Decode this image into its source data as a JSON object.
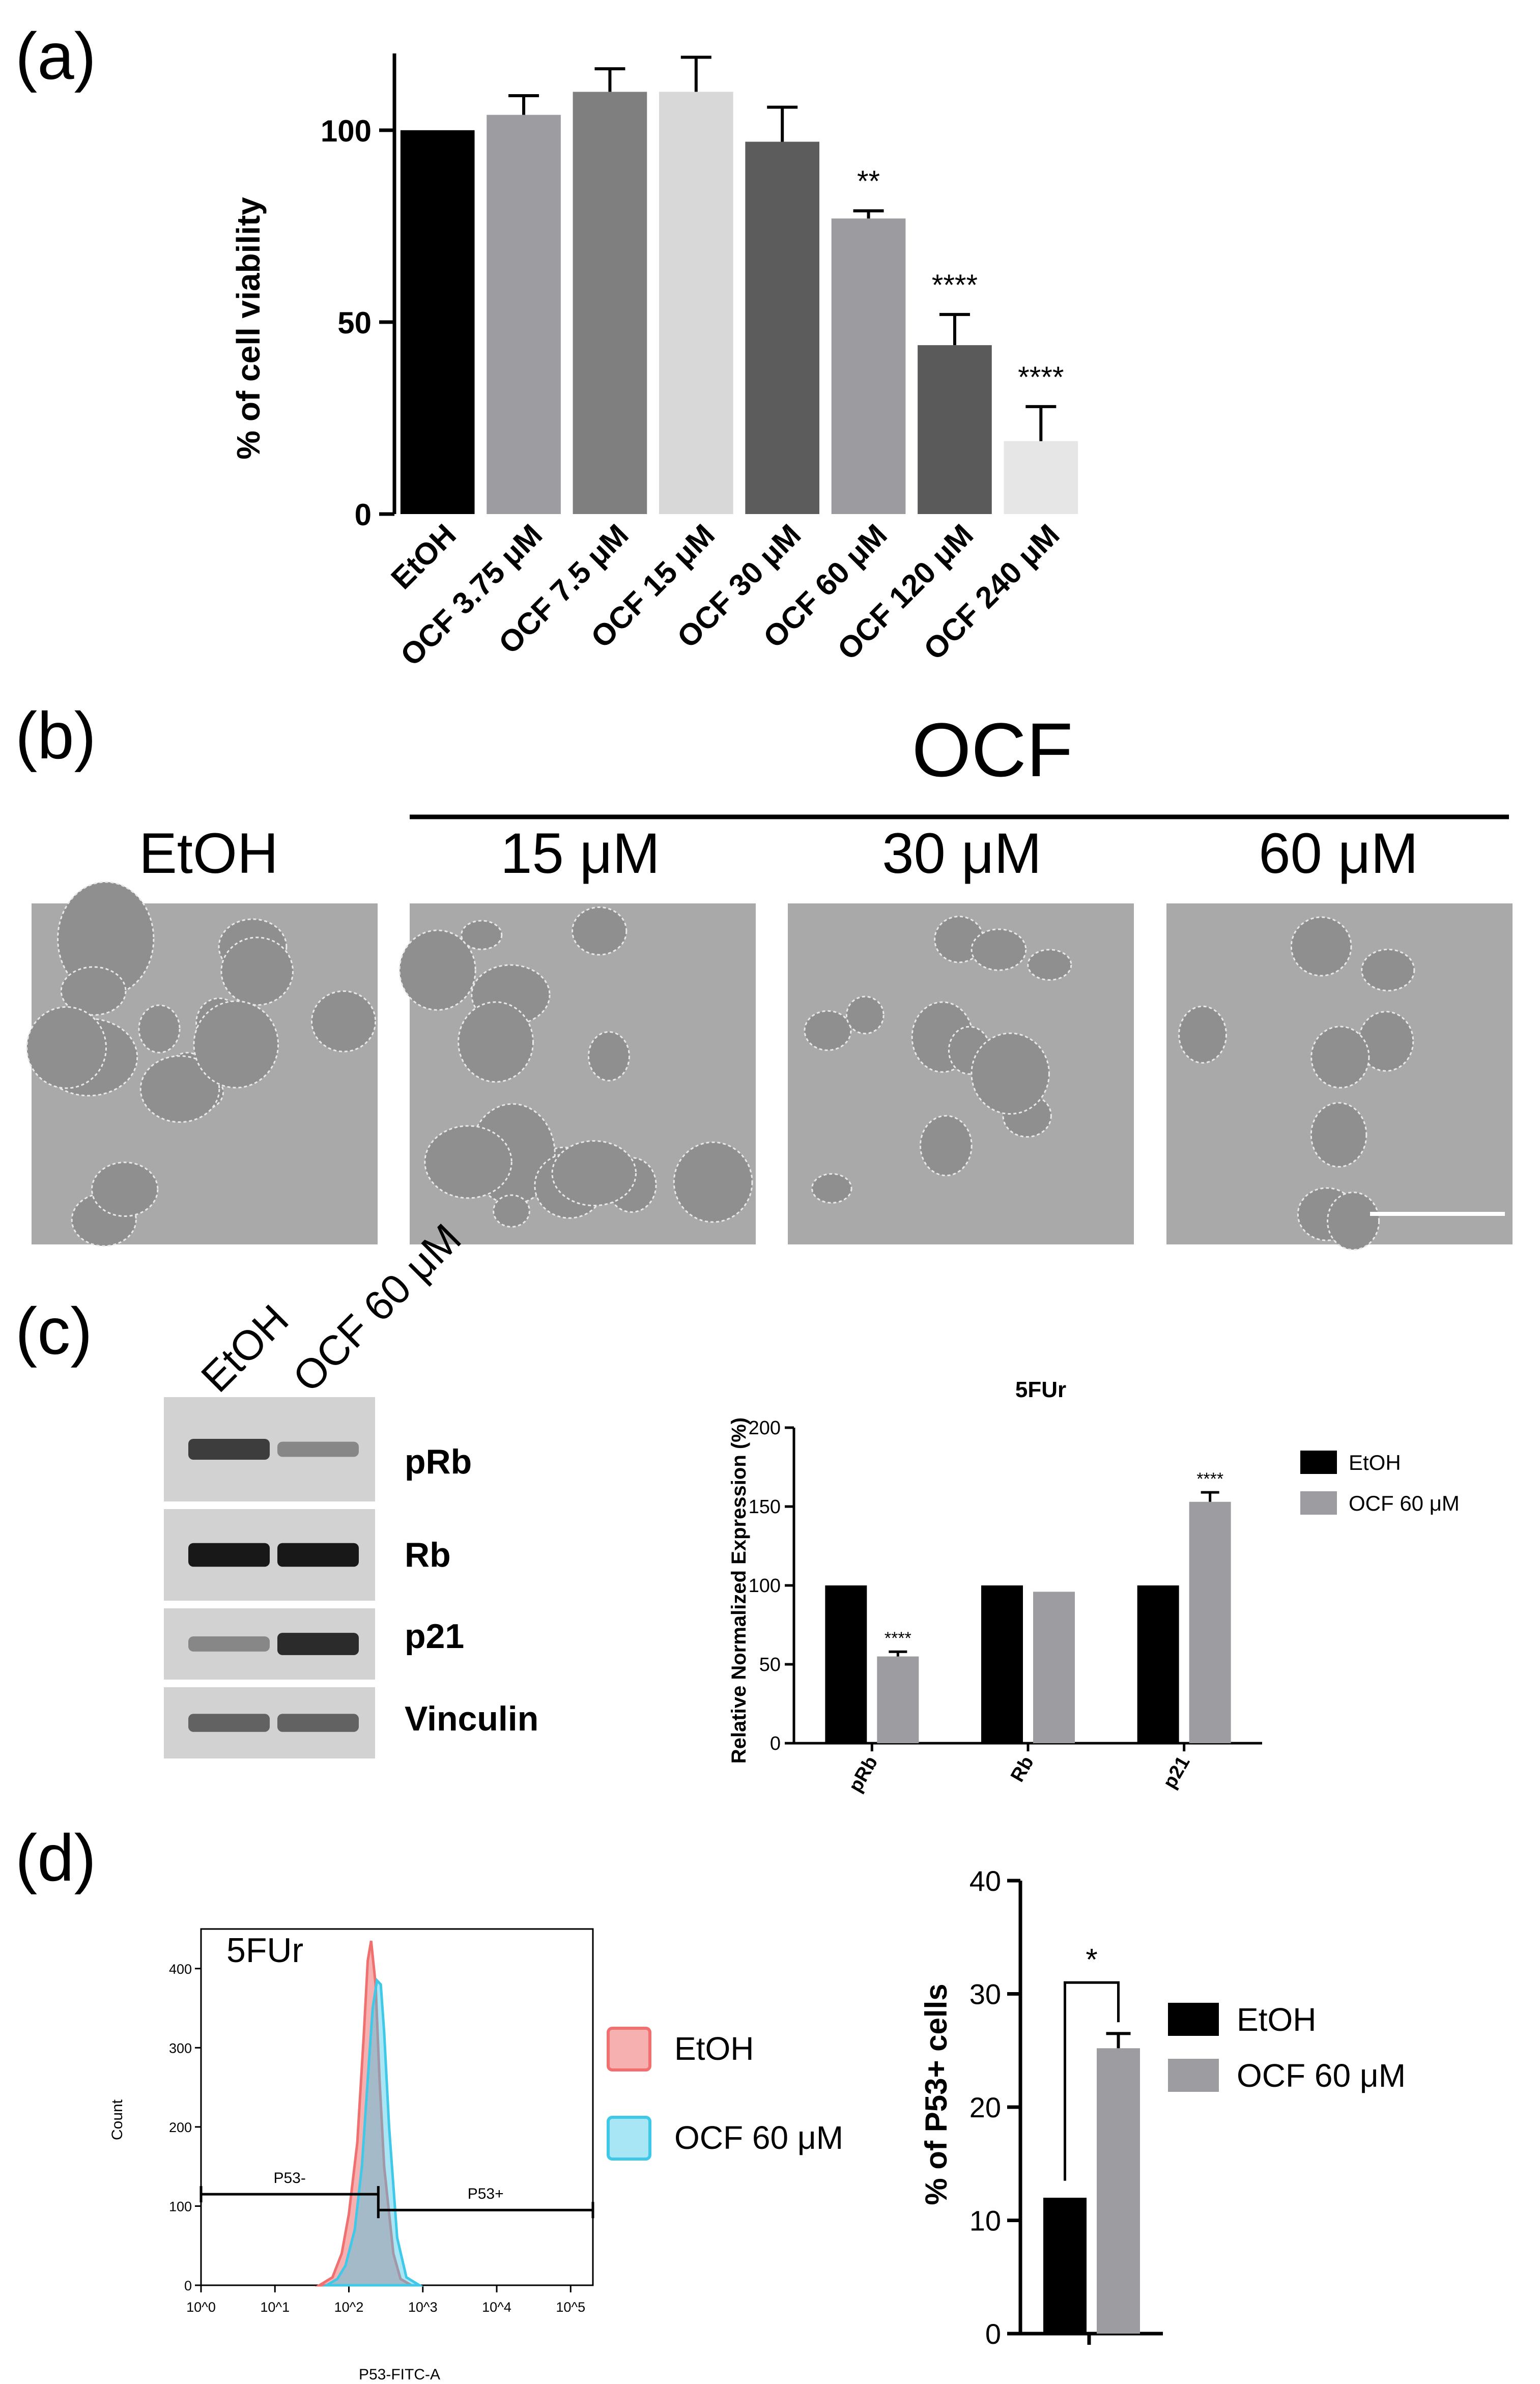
{
  "panels": {
    "a": {
      "label": "(a)"
    },
    "b": {
      "label": "(b)"
    },
    "c": {
      "label": "(c)"
    },
    "d": {
      "label": "(d)"
    }
  },
  "panel_b": {
    "group_title": "OCF",
    "columns": [
      "EtOH",
      "15 μM",
      "30 μM",
      "60 μM"
    ]
  },
  "panel_c_blot": {
    "lanes": [
      "EtOH",
      "OCF 60 μM"
    ],
    "bands": [
      "pRb",
      "Rb",
      "p21",
      "Vinculin"
    ]
  },
  "chart_data": [
    {
      "id": "a",
      "type": "bar",
      "title": "",
      "xlabel": "",
      "ylabel": "% of cell viability",
      "ylim": [
        0,
        120
      ],
      "yticks": [
        0,
        50,
        100
      ],
      "categories": [
        "EtOH",
        "OCF 3.75 μM",
        "OCF 7.5 μM",
        "OCF 15 μM",
        "OCF 30 μM",
        "OCF 60 μM",
        "OCF 120 μM",
        "OCF 240 μM"
      ],
      "values": [
        100,
        104,
        110,
        110,
        97,
        77,
        44,
        19
      ],
      "errors": [
        0,
        5,
        6,
        9,
        9,
        2,
        8,
        9
      ],
      "significance": [
        "",
        "",
        "",
        "",
        "",
        "**",
        "****",
        "****"
      ],
      "colors": [
        "#000000",
        "#9d9ca1",
        "#7f7f7f",
        "#d8d8d8",
        "#5c5c5c",
        "#9c9ca0",
        "#5a5a5a",
        "#e6e6e6"
      ]
    },
    {
      "id": "c",
      "type": "bar",
      "title": "5FUr",
      "xlabel": "",
      "ylabel": "Relative Normalized Expression (%)",
      "ylim": [
        0,
        200
      ],
      "yticks": [
        0,
        50,
        100,
        150,
        200
      ],
      "categories": [
        "pRb",
        "Rb",
        "p21"
      ],
      "series": [
        {
          "name": "EtOH",
          "values": [
            100,
            100,
            100
          ],
          "errors": [
            0,
            0,
            0
          ],
          "significance": [
            "",
            "",
            ""
          ],
          "color": "#000000"
        },
        {
          "name": "OCF 60 μM",
          "values": [
            55,
            96,
            153
          ],
          "errors": [
            3,
            0,
            6
          ],
          "significance": [
            "****",
            "",
            "****"
          ],
          "color": "#9d9ca1"
        }
      ],
      "legend": "right"
    },
    {
      "id": "d-histogram",
      "type": "area",
      "title": "5FUr",
      "xlabel": "P53-FITC-A",
      "ylabel": "Count",
      "xscale": "log",
      "xlim": [
        1,
        200000
      ],
      "xticks": [
        "10^0",
        "10^1",
        "10^2",
        "10^3",
        "10^4",
        "10^5"
      ],
      "ylim": [
        0,
        450
      ],
      "yticks": [
        0,
        100,
        200,
        300,
        400
      ],
      "series": [
        {
          "name": "EtOH",
          "x": [
            40,
            60,
            80,
            100,
            130,
            160,
            180,
            200,
            230,
            260,
            300,
            400,
            500,
            700
          ],
          "values": [
            0,
            10,
            40,
            90,
            180,
            320,
            410,
            435,
            380,
            260,
            150,
            40,
            8,
            0
          ],
          "color": "#f07070"
        },
        {
          "name": "OCF 60 μM",
          "x": [
            50,
            70,
            90,
            120,
            150,
            180,
            210,
            240,
            270,
            300,
            350,
            450,
            600,
            900
          ],
          "values": [
            0,
            8,
            25,
            70,
            150,
            260,
            350,
            385,
            380,
            320,
            200,
            60,
            10,
            0
          ],
          "color": "#40c8e8"
        }
      ],
      "gates": [
        {
          "label": "P53-",
          "from": 1,
          "to": 250,
          "y": 115
        },
        {
          "label": "P53+",
          "from": 250,
          "to": 200000,
          "y": 95
        }
      ],
      "legend": "right"
    },
    {
      "id": "d-bar",
      "type": "bar",
      "title": "",
      "xlabel": "",
      "ylabel": "% of P53+ cells",
      "ylim": [
        0,
        40
      ],
      "yticks": [
        0,
        10,
        20,
        30,
        40
      ],
      "categories": [
        ""
      ],
      "series": [
        {
          "name": "EtOH",
          "values": [
            12
          ],
          "errors": [
            0
          ],
          "color": "#000000"
        },
        {
          "name": "OCF 60 μM",
          "values": [
            25.2
          ],
          "errors": [
            1.3
          ],
          "color": "#9d9ca1"
        }
      ],
      "significance": "*",
      "legend": "right"
    }
  ]
}
